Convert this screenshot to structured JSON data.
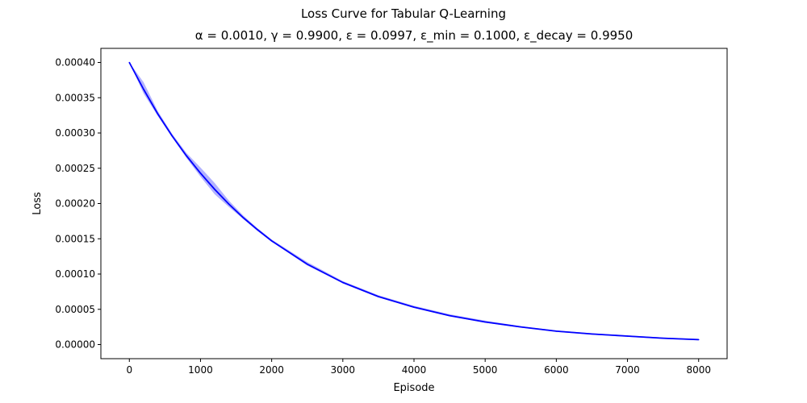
{
  "suptitle": "Loss Curve for Tabular Q-Learning",
  "chart_data": {
    "type": "line",
    "title": "α = 0.0010, γ = 0.9900, ε = 0.0997, ε_min = 0.1000, ε_decay = 0.9950",
    "xlabel": "Episode",
    "ylabel": "Loss",
    "xlim": [
      -400,
      8400
    ],
    "ylim": [
      -2e-05,
      0.00042
    ],
    "xticks": [
      0,
      1000,
      2000,
      3000,
      4000,
      5000,
      6000,
      7000,
      8000
    ],
    "xtick_labels": [
      "0",
      "1000",
      "2000",
      "3000",
      "4000",
      "5000",
      "6000",
      "7000",
      "8000"
    ],
    "yticks": [
      0.0,
      5e-05,
      0.0001,
      0.00015,
      0.0002,
      0.00025,
      0.0003,
      0.00035,
      0.0004
    ],
    "ytick_labels": [
      "0.00000",
      "0.00005",
      "0.00010",
      "0.00015",
      "0.00020",
      "0.00025",
      "0.00030",
      "0.00035",
      "0.00040"
    ],
    "grid": false,
    "legend": null,
    "series": [
      {
        "color": "#0000ff",
        "band_color": "#0000ff",
        "band_opacity": 0.3,
        "x": [
          0,
          200,
          400,
          600,
          800,
          1000,
          1200,
          1400,
          1600,
          1800,
          2000,
          2500,
          3000,
          3500,
          4000,
          4500,
          5000,
          5500,
          6000,
          6500,
          7000,
          7500,
          8000
        ],
        "y": [
          0.0004,
          0.000362,
          0.000327,
          0.000296,
          0.000268,
          0.000243,
          0.00022,
          0.000199,
          0.00018,
          0.000163,
          0.000147,
          0.000114,
          8.8e-05,
          6.8e-05,
          5.3e-05,
          4.1e-05,
          3.2e-05,
          2.5e-05,
          1.9e-05,
          1.5e-05,
          1.2e-05,
          9e-06,
          7e-06
        ],
        "lower": [
          0.0004,
          0.000356,
          0.000324,
          0.000294,
          0.000265,
          0.000238,
          0.000213,
          0.000195,
          0.000178,
          0.000161,
          0.000146,
          0.000112,
          8.7e-05,
          6.7e-05,
          5.2e-05,
          4e-05,
          3.1e-05,
          2.4e-05,
          1.8e-05,
          1.4e-05,
          1.1e-05,
          8e-06,
          6e-06
        ],
        "upper": [
          0.0004,
          0.000372,
          0.000331,
          0.000299,
          0.000272,
          0.000251,
          0.000229,
          0.000204,
          0.000183,
          0.000165,
          0.000149,
          0.000117,
          9e-05,
          7e-05,
          5.5e-05,
          4.3e-05,
          3.4e-05,
          2.6e-05,
          2e-05,
          1.6e-05,
          1.3e-05,
          1e-05,
          8e-06
        ]
      }
    ]
  }
}
